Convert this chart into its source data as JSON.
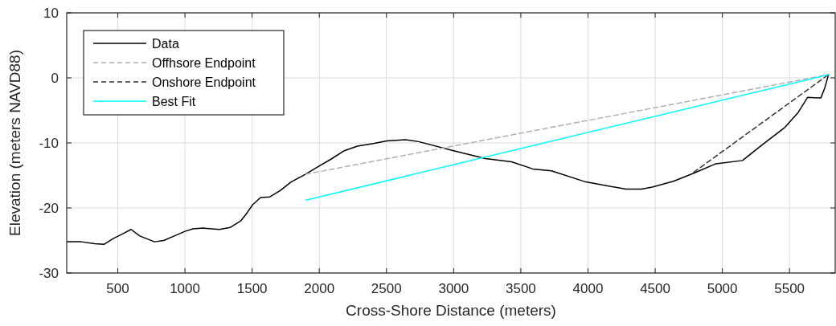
{
  "chart_data": {
    "type": "line",
    "xlabel": "Cross-Shore Distance (meters)",
    "ylabel": "Elevation (meters NAVD88)",
    "xlim": [
      120,
      5840
    ],
    "ylim": [
      -30,
      10
    ],
    "xticks": [
      500,
      1000,
      1500,
      2000,
      2500,
      3000,
      3500,
      4000,
      4500,
      5000,
      5500
    ],
    "yticks": [
      -30,
      -20,
      -10,
      0,
      10
    ],
    "grid": true,
    "legend": "top left",
    "marker": "none",
    "series": [
      {
        "name": "Data",
        "color": "#000000",
        "line_style": "solid",
        "x": [
          125,
          229,
          328,
          397,
          466,
          535,
          599,
          664,
          773,
          842,
          921,
          1000,
          1059,
          1138,
          1257,
          1336,
          1415,
          1464,
          1504,
          1563,
          1632,
          1711,
          1790,
          1899,
          1988,
          2087,
          2186,
          2284,
          2403,
          2502,
          2640,
          2739,
          3000,
          3237,
          3431,
          3589,
          3728,
          3984,
          4281,
          4399,
          4478,
          4636,
          4794,
          4952,
          5150,
          5308,
          5466,
          5565,
          5634,
          5733,
          5763,
          5790
        ],
        "values": [
          -25.2,
          -25.2,
          -25.5,
          -25.6,
          -24.7,
          -24.0,
          -23.3,
          -24.3,
          -25.2,
          -25.0,
          -24.3,
          -23.6,
          -23.2,
          -23.1,
          -23.3,
          -23.0,
          -22.0,
          -20.7,
          -19.5,
          -18.4,
          -18.3,
          -17.3,
          -16.0,
          -14.8,
          -13.7,
          -12.5,
          -11.2,
          -10.5,
          -10.1,
          -9.7,
          -9.5,
          -9.8,
          -11.2,
          -12.4,
          -12.9,
          -14.0,
          -14.3,
          -16.0,
          -17.1,
          -17.1,
          -16.8,
          -15.9,
          -14.6,
          -13.2,
          -12.7,
          -10.1,
          -7.6,
          -5.3,
          -3.0,
          -3.1,
          -1.5,
          0.5
        ]
      },
      {
        "name": "Offhsore Endpoint",
        "color": "#b0b0b0",
        "line_style": "dashed",
        "x": [
          1899,
          5790
        ],
        "values": [
          -14.8,
          0.5
        ]
      },
      {
        "name": "Onshore Endpoint",
        "color": "#333333",
        "line_style": "dashed",
        "x": [
          4788,
          5790
        ],
        "values": [
          -14.5,
          0.5
        ]
      },
      {
        "name": "Best Fit",
        "color": "#00ffff",
        "line_style": "solid",
        "x": [
          1899,
          5790
        ],
        "values": [
          -18.8,
          0.5
        ]
      }
    ]
  }
}
